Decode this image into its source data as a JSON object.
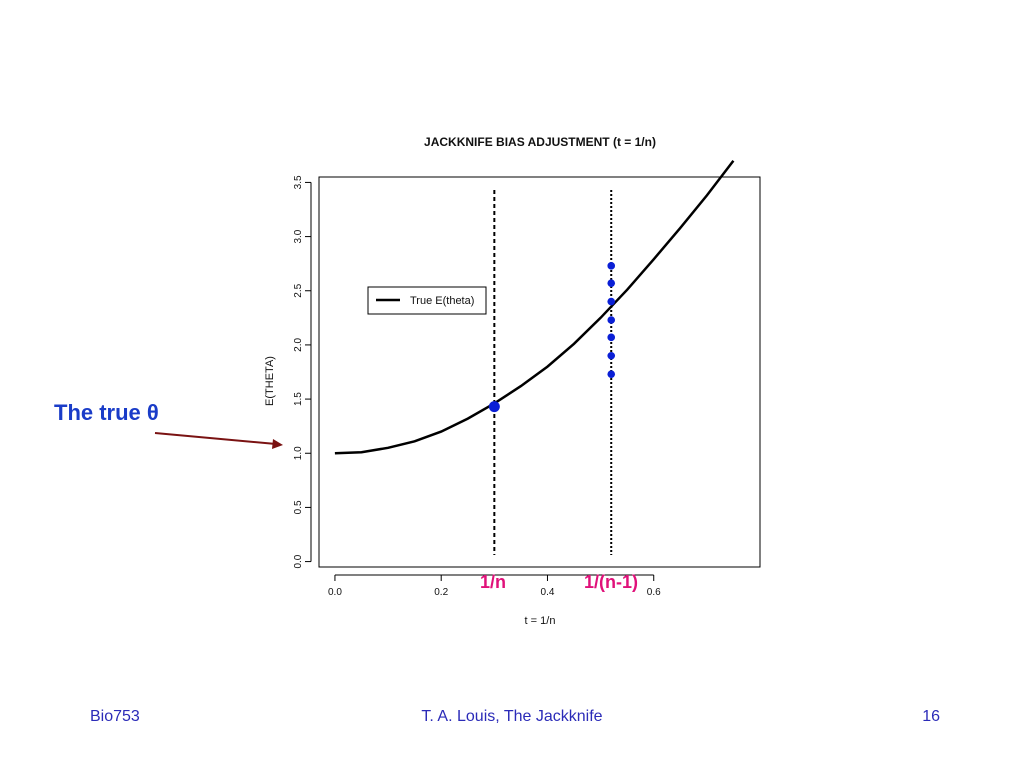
{
  "slide": {
    "callout_text": "The true θ",
    "marker_labels": [
      "1/n",
      "1/(n-1)"
    ],
    "footer": {
      "left": "Bio753",
      "center": "T. A. Louis, The Jackknife",
      "right": "16"
    },
    "colors": {
      "callout": "#1a3cc8",
      "marker_label": "#e0117a",
      "arrow": "#7a1212",
      "footer": "#2b2bb8",
      "points": "#0a1fd6"
    }
  },
  "chart_data": {
    "type": "line",
    "title": "JACKKNIFE BIAS ADJUSTMENT (t = 1/n)",
    "xlabel": "t = 1/n",
    "ylabel": "E(THETA)",
    "xlim": [
      -0.03,
      0.8
    ],
    "ylim": [
      -0.05,
      3.55
    ],
    "xticks": [
      0.0,
      0.2,
      0.4,
      0.6
    ],
    "xtick_labels": [
      "0.0",
      "0.2",
      "0.4",
      "0.6"
    ],
    "yticks": [
      0.0,
      0.5,
      1.0,
      1.5,
      2.0,
      2.5,
      3.0,
      3.5
    ],
    "ytick_labels": [
      "0.0",
      "0.5",
      "1.0",
      "1.5",
      "2.0",
      "2.5",
      "3.0",
      "3.5"
    ],
    "legend": {
      "placement": "upper-left",
      "entries": [
        "True E(theta)"
      ]
    },
    "series": [
      {
        "name": "True E(theta)",
        "x": [
          0.0,
          0.05,
          0.1,
          0.15,
          0.2,
          0.25,
          0.3,
          0.35,
          0.4,
          0.45,
          0.5,
          0.55,
          0.6,
          0.65,
          0.7,
          0.75
        ],
        "y": [
          1.0,
          1.01,
          1.05,
          1.11,
          1.2,
          1.32,
          1.46,
          1.62,
          1.8,
          2.01,
          2.25,
          2.51,
          2.79,
          3.08,
          3.38,
          3.7
        ]
      }
    ],
    "vlines": [
      {
        "x": 0.3,
        "style": "dashed",
        "label": "1/n"
      },
      {
        "x": 0.52,
        "style": "dotted",
        "label": "1/(n-1)"
      }
    ],
    "big_point": {
      "x": 0.3,
      "y": 1.43
    },
    "jackknife_points": {
      "x": 0.52,
      "y": [
        2.73,
        2.57,
        2.4,
        2.23,
        2.07,
        1.9,
        1.73
      ]
    }
  }
}
